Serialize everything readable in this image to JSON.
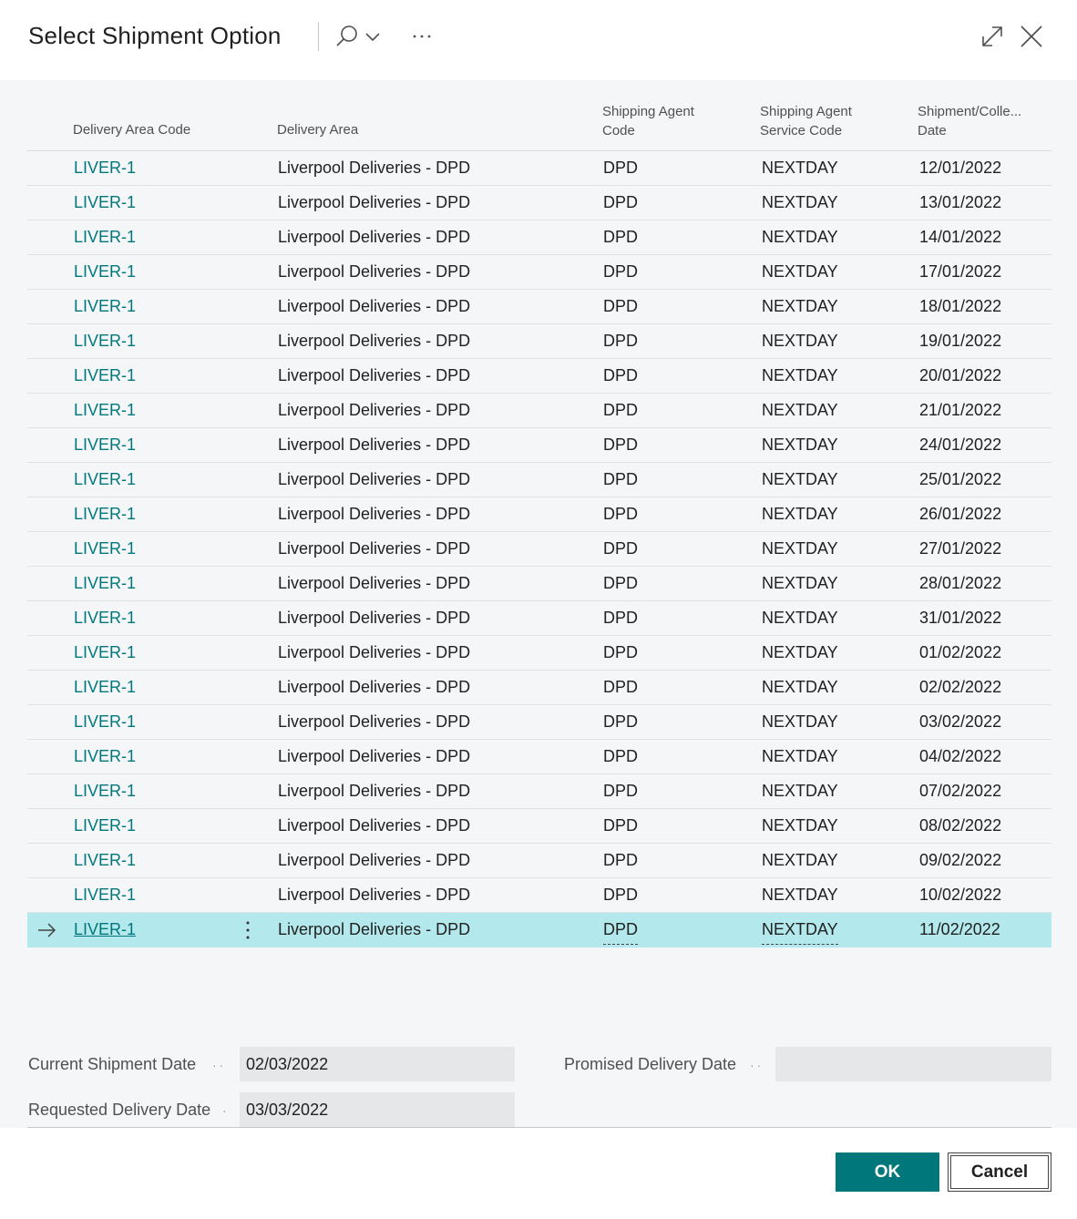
{
  "dialog": {
    "title": "Select Shipment Option",
    "icons": {
      "search": "search-icon",
      "chevron": "chevron-down-icon",
      "more": "more-options-icon",
      "expand": "expand-icon",
      "close": "close-icon"
    }
  },
  "table": {
    "headers": {
      "code": "Delivery Area Code",
      "area": "Delivery Area",
      "agent_1": "Shipping Agent",
      "agent_2": "Code",
      "svc_1": "Shipping Agent",
      "svc_2": "Service Code",
      "date_1": "Shipment/Colle...",
      "date_2": "Date"
    },
    "rows": [
      {
        "code": "LIVER-1",
        "area": "Liverpool Deliveries - DPD",
        "agent": "DPD",
        "service": "NEXTDAY",
        "date": "12/01/2022"
      },
      {
        "code": "LIVER-1",
        "area": "Liverpool Deliveries - DPD",
        "agent": "DPD",
        "service": "NEXTDAY",
        "date": "13/01/2022"
      },
      {
        "code": "LIVER-1",
        "area": "Liverpool Deliveries - DPD",
        "agent": "DPD",
        "service": "NEXTDAY",
        "date": "14/01/2022"
      },
      {
        "code": "LIVER-1",
        "area": "Liverpool Deliveries - DPD",
        "agent": "DPD",
        "service": "NEXTDAY",
        "date": "17/01/2022"
      },
      {
        "code": "LIVER-1",
        "area": "Liverpool Deliveries - DPD",
        "agent": "DPD",
        "service": "NEXTDAY",
        "date": "18/01/2022"
      },
      {
        "code": "LIVER-1",
        "area": "Liverpool Deliveries - DPD",
        "agent": "DPD",
        "service": "NEXTDAY",
        "date": "19/01/2022"
      },
      {
        "code": "LIVER-1",
        "area": "Liverpool Deliveries - DPD",
        "agent": "DPD",
        "service": "NEXTDAY",
        "date": "20/01/2022"
      },
      {
        "code": "LIVER-1",
        "area": "Liverpool Deliveries - DPD",
        "agent": "DPD",
        "service": "NEXTDAY",
        "date": "21/01/2022"
      },
      {
        "code": "LIVER-1",
        "area": "Liverpool Deliveries - DPD",
        "agent": "DPD",
        "service": "NEXTDAY",
        "date": "24/01/2022"
      },
      {
        "code": "LIVER-1",
        "area": "Liverpool Deliveries - DPD",
        "agent": "DPD",
        "service": "NEXTDAY",
        "date": "25/01/2022"
      },
      {
        "code": "LIVER-1",
        "area": "Liverpool Deliveries - DPD",
        "agent": "DPD",
        "service": "NEXTDAY",
        "date": "26/01/2022"
      },
      {
        "code": "LIVER-1",
        "area": "Liverpool Deliveries - DPD",
        "agent": "DPD",
        "service": "NEXTDAY",
        "date": "27/01/2022"
      },
      {
        "code": "LIVER-1",
        "area": "Liverpool Deliveries - DPD",
        "agent": "DPD",
        "service": "NEXTDAY",
        "date": "28/01/2022"
      },
      {
        "code": "LIVER-1",
        "area": "Liverpool Deliveries - DPD",
        "agent": "DPD",
        "service": "NEXTDAY",
        "date": "31/01/2022"
      },
      {
        "code": "LIVER-1",
        "area": "Liverpool Deliveries - DPD",
        "agent": "DPD",
        "service": "NEXTDAY",
        "date": "01/02/2022"
      },
      {
        "code": "LIVER-1",
        "area": "Liverpool Deliveries - DPD",
        "agent": "DPD",
        "service": "NEXTDAY",
        "date": "02/02/2022"
      },
      {
        "code": "LIVER-1",
        "area": "Liverpool Deliveries - DPD",
        "agent": "DPD",
        "service": "NEXTDAY",
        "date": "03/02/2022"
      },
      {
        "code": "LIVER-1",
        "area": "Liverpool Deliveries - DPD",
        "agent": "DPD",
        "service": "NEXTDAY",
        "date": "04/02/2022"
      },
      {
        "code": "LIVER-1",
        "area": "Liverpool Deliveries - DPD",
        "agent": "DPD",
        "service": "NEXTDAY",
        "date": "07/02/2022"
      },
      {
        "code": "LIVER-1",
        "area": "Liverpool Deliveries - DPD",
        "agent": "DPD",
        "service": "NEXTDAY",
        "date": "08/02/2022"
      },
      {
        "code": "LIVER-1",
        "area": "Liverpool Deliveries - DPD",
        "agent": "DPD",
        "service": "NEXTDAY",
        "date": "09/02/2022"
      },
      {
        "code": "LIVER-1",
        "area": "Liverpool Deliveries - DPD",
        "agent": "DPD",
        "service": "NEXTDAY",
        "date": "10/02/2022"
      },
      {
        "code": "LIVER-1",
        "area": "Liverpool Deliveries - DPD",
        "agent": "DPD",
        "service": "NEXTDAY",
        "date": "11/02/2022",
        "selected": true
      }
    ]
  },
  "fields": {
    "current_shipment_date": {
      "label": "Current Shipment Date",
      "value": "02/03/2022"
    },
    "requested_delivery_date": {
      "label": "Requested Delivery Date",
      "value": "03/03/2022"
    },
    "promised_delivery_date": {
      "label": "Promised Delivery Date",
      "value": ""
    }
  },
  "footer": {
    "ok_label": "OK",
    "cancel_label": "Cancel"
  },
  "colors": {
    "accent": "#00787b",
    "selected_row": "#b3e9ec",
    "content_bg": "#f5f6f8",
    "field_bg": "#e6e7e9"
  }
}
